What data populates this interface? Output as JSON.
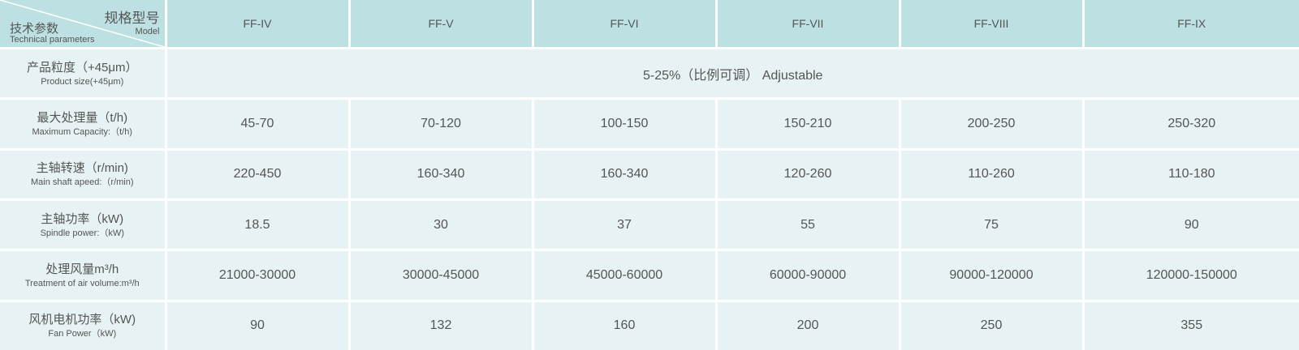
{
  "header": {
    "corner": {
      "model_cn": "规格型号",
      "model_en": "Model",
      "param_cn": "技术参数",
      "param_en": "Technical parameters"
    },
    "models": [
      "FF-IV",
      "FF-V",
      "FF-VI",
      "FF-VII",
      "FF-VIII",
      "FF-IX"
    ]
  },
  "rows": [
    {
      "cn": "产品粒度（+45μm）",
      "en": "Product size(+45μm)",
      "merged": "5-25%（比例可调） Adjustable"
    },
    {
      "cn": "最大处理量（t/h)",
      "en": "Maximum Capacity:（t/h)",
      "values": [
        "45-70",
        "70-120",
        "100-150",
        "150-210",
        "200-250",
        "250-320"
      ]
    },
    {
      "cn": "主轴转速（r/min)",
      "en": "Main shaft apeed:（r/min)",
      "values": [
        "220-450",
        "160-340",
        "160-340",
        "120-260",
        "110-260",
        "110-180"
      ]
    },
    {
      "cn": "主轴功率（kW)",
      "en": "Spindle power:（kW)",
      "values": [
        "18.5",
        "30",
        "37",
        "55",
        "75",
        "90"
      ]
    },
    {
      "cn": "处理风量m³/h",
      "en": "Treatment of air volume:m³/h",
      "values": [
        "21000-30000",
        "30000-45000",
        "45000-60000",
        "60000-90000",
        "90000-120000",
        "120000-150000"
      ]
    },
    {
      "cn": "风机电机功率（kW)",
      "en": "Fan Power（kW)",
      "values": [
        "90",
        "132",
        "160",
        "200",
        "250",
        "355"
      ]
    }
  ],
  "colors": {
    "header_bg": "#bde0e3",
    "body_bg": "#e6f2f3",
    "text": "#555555",
    "grid": "#ffffff"
  }
}
